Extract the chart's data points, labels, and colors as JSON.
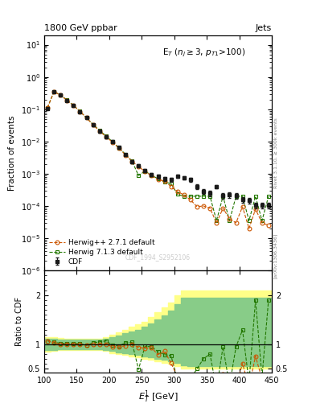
{
  "title_left": "1800 GeV ppbar",
  "title_right": "Jets",
  "annotation": "E$_T$ ($n_j \\geq 3$, $p_{T1}$>100)",
  "xlabel": "$E_T^1$ [GeV]",
  "ylabel_main": "Fraction of events",
  "ylabel_ratio": "Ratio to CDF",
  "watermark": "CDF_1994_S2952106",
  "right_label": "Rivet 3.1.10, ≥ 300k events",
  "right_label2": "[arXiv:1306.3436]",
  "xlim": [
    100,
    450
  ],
  "ylim_main": [
    1e-06,
    20
  ],
  "ylim_ratio": [
    0.42,
    2.5
  ],
  "cdf_x": [
    105,
    115,
    125,
    135,
    145,
    155,
    165,
    175,
    185,
    195,
    205,
    215,
    225,
    235,
    245,
    255,
    265,
    275,
    285,
    295,
    305,
    315,
    325,
    335,
    345,
    355,
    365,
    375,
    385,
    395,
    405,
    415,
    425,
    435,
    445
  ],
  "cdf_y": [
    0.105,
    0.34,
    0.27,
    0.19,
    0.13,
    0.085,
    0.055,
    0.033,
    0.021,
    0.014,
    0.01,
    0.0065,
    0.0039,
    0.0024,
    0.0018,
    0.00125,
    0.00095,
    0.00082,
    0.0007,
    0.00065,
    0.00083,
    0.00075,
    0.00065,
    0.0004,
    0.00028,
    0.00025,
    0.0004,
    0.00021,
    0.00022,
    0.00021,
    0.000155,
    0.00015,
    0.000105,
    0.000105,
    0.000105
  ],
  "cdf_yerr_lo": [
    0.008,
    0.01,
    0.01,
    0.009,
    0.007,
    0.005,
    0.004,
    0.003,
    0.002,
    0.0015,
    0.001,
    0.0006,
    0.0004,
    0.0003,
    0.0002,
    0.00015,
    0.0001,
    0.0001,
    0.0001,
    0.0001,
    0.0001,
    0.0001,
    0.0001,
    6e-05,
    5e-05,
    5e-05,
    5e-05,
    4e-05,
    4e-05,
    4e-05,
    3e-05,
    3e-05,
    2e-05,
    2e-05,
    2e-05
  ],
  "cdf_yerr_hi": [
    0.008,
    0.01,
    0.01,
    0.009,
    0.007,
    0.005,
    0.004,
    0.003,
    0.002,
    0.0015,
    0.001,
    0.0006,
    0.0004,
    0.0003,
    0.0002,
    0.00015,
    0.0001,
    0.0001,
    0.0001,
    0.0001,
    0.0001,
    0.0001,
    0.0001,
    6e-05,
    5e-05,
    5e-05,
    5e-05,
    4e-05,
    4e-05,
    4e-05,
    3e-05,
    3e-05,
    2e-05,
    2e-05,
    2e-05
  ],
  "hw271_x": [
    105,
    115,
    125,
    135,
    145,
    155,
    165,
    175,
    185,
    195,
    205,
    215,
    225,
    235,
    245,
    255,
    265,
    275,
    285,
    295,
    305,
    315,
    325,
    335,
    345,
    355,
    365,
    375,
    385,
    395,
    405,
    415,
    425,
    435,
    445
  ],
  "hw271_y": [
    0.112,
    0.35,
    0.27,
    0.19,
    0.13,
    0.085,
    0.054,
    0.033,
    0.021,
    0.014,
    0.0095,
    0.0062,
    0.0038,
    0.0024,
    0.0017,
    0.00115,
    0.00088,
    0.00065,
    0.0006,
    0.0004,
    0.00028,
    0.00022,
    0.000155,
    9.5e-05,
    0.0001,
    8.5e-05,
    3e-05,
    8.5e-05,
    4e-05,
    3e-05,
    9.5e-05,
    2e-05,
    8e-05,
    3e-05,
    2.5e-05
  ],
  "hw713_x": [
    105,
    115,
    125,
    135,
    145,
    155,
    165,
    175,
    185,
    195,
    205,
    215,
    225,
    235,
    245,
    255,
    265,
    275,
    285,
    295,
    305,
    315,
    325,
    335,
    345,
    355,
    365,
    375,
    385,
    395,
    405,
    415,
    425,
    435,
    445
  ],
  "hw713_y": [
    0.112,
    0.355,
    0.274,
    0.193,
    0.132,
    0.086,
    0.054,
    0.034,
    0.022,
    0.015,
    0.0098,
    0.0063,
    0.004,
    0.0025,
    0.00088,
    0.0012,
    0.0009,
    0.0007,
    0.00055,
    0.0005,
    0.00023,
    0.0002,
    0.0002,
    0.0002,
    0.0002,
    0.0002,
    3.5e-05,
    0.0002,
    3.5e-05,
    0.0002,
    0.0002,
    3.5e-05,
    0.0002,
    3.5e-05,
    0.0002
  ],
  "hw271_ratio": [
    1.07,
    1.03,
    1.0,
    1.0,
    1.0,
    1.0,
    0.98,
    1.0,
    1.0,
    1.0,
    0.95,
    0.95,
    0.97,
    1.0,
    0.94,
    0.92,
    0.93,
    0.79,
    0.86,
    0.62,
    0.34,
    0.29,
    0.24,
    0.24,
    0.36,
    0.34,
    0.075,
    0.4,
    0.18,
    0.14,
    0.61,
    0.13,
    0.76,
    0.29,
    0.24
  ],
  "hw713_ratio": [
    1.07,
    1.04,
    1.02,
    1.02,
    1.02,
    1.01,
    0.98,
    1.03,
    1.05,
    1.07,
    0.98,
    0.97,
    1.03,
    1.04,
    0.49,
    0.96,
    0.95,
    0.85,
    0.79,
    0.77,
    0.28,
    0.27,
    0.31,
    0.5,
    0.71,
    0.8,
    0.088,
    0.95,
    0.16,
    0.95,
    1.29,
    0.23,
    1.9,
    0.33,
    1.9
  ],
  "band_yellow_edges": [
    100,
    110,
    120,
    130,
    140,
    150,
    160,
    170,
    180,
    190,
    200,
    210,
    220,
    230,
    240,
    250,
    260,
    270,
    280,
    290,
    300,
    310,
    320,
    330,
    340,
    350,
    360,
    370,
    380,
    390,
    400,
    410,
    420,
    430,
    440,
    450
  ],
  "band_yellow_lo": [
    0.85,
    0.87,
    0.88,
    0.88,
    0.88,
    0.88,
    0.88,
    0.88,
    0.88,
    0.86,
    0.82,
    0.8,
    0.78,
    0.76,
    0.73,
    0.7,
    0.68,
    0.65,
    0.62,
    0.6,
    0.55,
    0.5,
    0.5,
    0.5,
    0.5,
    0.5,
    0.5,
    0.5,
    0.5,
    0.5,
    0.5,
    0.5,
    0.5,
    0.5,
    0.5,
    0.5
  ],
  "band_yellow_hi": [
    1.15,
    1.14,
    1.13,
    1.12,
    1.12,
    1.12,
    1.12,
    1.12,
    1.12,
    1.15,
    1.2,
    1.25,
    1.3,
    1.35,
    1.4,
    1.45,
    1.55,
    1.65,
    1.75,
    1.85,
    2.0,
    2.1,
    2.1,
    2.1,
    2.1,
    2.1,
    2.1,
    2.1,
    2.1,
    2.1,
    2.1,
    2.1,
    2.1,
    2.1,
    2.1,
    2.1
  ],
  "band_green_edges": [
    100,
    110,
    120,
    130,
    140,
    150,
    160,
    170,
    180,
    190,
    200,
    210,
    220,
    230,
    240,
    250,
    260,
    270,
    280,
    290,
    300,
    310,
    320,
    330,
    340,
    350,
    360,
    370,
    380,
    390,
    400,
    410,
    420,
    430,
    440,
    450
  ],
  "band_green_lo": [
    0.88,
    0.89,
    0.9,
    0.9,
    0.9,
    0.9,
    0.9,
    0.9,
    0.9,
    0.88,
    0.86,
    0.84,
    0.82,
    0.8,
    0.78,
    0.75,
    0.73,
    0.7,
    0.68,
    0.65,
    0.62,
    0.58,
    0.55,
    0.55,
    0.55,
    0.55,
    0.55,
    0.55,
    0.55,
    0.55,
    0.55,
    0.55,
    0.55,
    0.55,
    0.55,
    0.55
  ],
  "band_green_hi": [
    1.12,
    1.11,
    1.1,
    1.1,
    1.1,
    1.1,
    1.1,
    1.1,
    1.1,
    1.12,
    1.15,
    1.18,
    1.22,
    1.26,
    1.3,
    1.35,
    1.42,
    1.5,
    1.58,
    1.68,
    1.82,
    1.95,
    1.95,
    1.95,
    1.95,
    1.95,
    1.95,
    1.95,
    1.95,
    1.95,
    1.95,
    1.95,
    1.95,
    1.95,
    1.95,
    1.95
  ],
  "color_cdf": "#1a1a1a",
  "color_hw271": "#cc5500",
  "color_hw713": "#227700",
  "color_yellow": "#ffff88",
  "color_green": "#88cc88",
  "background_color": "#ffffff"
}
